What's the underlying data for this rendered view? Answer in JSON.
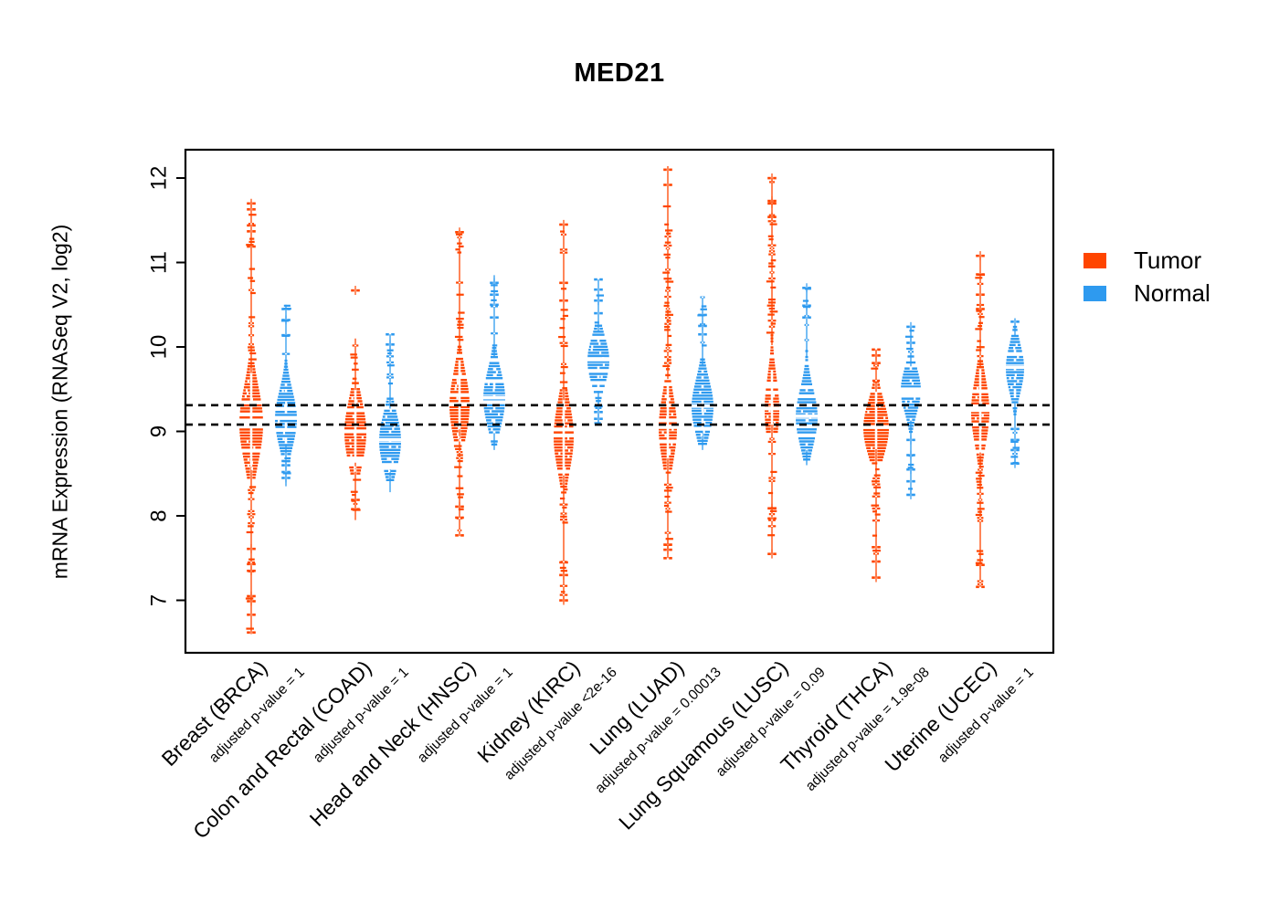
{
  "title": "MED21",
  "y_axis_label": "mRNA Expression (RNASeq V2, log2)",
  "chart_data": {
    "type": "violin",
    "marker_style": "horizontal-dash-strip",
    "title": "MED21",
    "ylabel": "mRNA Expression (RNASeq V2, log2)",
    "y_ticks": [
      7,
      8,
      9,
      10,
      11,
      12
    ],
    "ylim": [
      6.4,
      12.33
    ],
    "grid": false,
    "legend_position": "right",
    "reference_lines": [
      9.31,
      9.08
    ],
    "reference_line_style": "dashed",
    "series": [
      {
        "name": "Tumor",
        "color": "#FF4500"
      },
      {
        "name": "Normal",
        "color": "#2E9AEF"
      }
    ],
    "groups": [
      {
        "label": "Breast (BRCA)",
        "pvalue_label": "adjusted p-value = 1",
        "tumor": {
          "median": 9.1,
          "q1": 8.82,
          "q3": 9.42,
          "bulk": [
            8.45,
            9.82
          ],
          "stem": [
            6.6,
            11.72
          ],
          "w": 13,
          "outliers_high": [
            11.19,
            11.37,
            11.44,
            11.63,
            11.7
          ],
          "outliers_low": [
            7.61,
            7.43,
            7.35,
            7.05,
            6.99,
            6.83,
            6.62
          ],
          "clusters": [
            {
              "lo": 9.85,
              "hi": 11.0,
              "p": 0.5
            },
            {
              "lo": 7.8,
              "hi": 8.45,
              "p": 0.5
            }
          ]
        },
        "normal": {
          "median": 9.16,
          "q1": 8.95,
          "q3": 9.4,
          "bulk": [
            8.72,
            9.85
          ],
          "stem": [
            8.35,
            10.5
          ],
          "w": 12,
          "outliers_high": [
            10.14,
            10.32,
            10.45
          ],
          "outliers_low": [
            8.45,
            8.52,
            8.6,
            8.65
          ],
          "clusters": [
            {
              "lo": 9.85,
              "hi": 10.1,
              "p": 0.4
            }
          ]
        }
      },
      {
        "label": "Colon and Rectal (COAD)",
        "pvalue_label": "adjusted p-value = 1",
        "tumor": {
          "median": 9.0,
          "q1": 8.74,
          "q3": 9.26,
          "bulk": [
            8.5,
            9.62
          ],
          "stem": [
            7.95,
            10.1
          ],
          "w": 12,
          "outliers_high": [
            10.67
          ],
          "outliers_low": [
            8.08,
            8.19
          ],
          "clusters": [
            {
              "lo": 9.62,
              "hi": 9.95,
              "p": 0.45
            },
            {
              "lo": 8.1,
              "hi": 8.5,
              "p": 0.45
            }
          ]
        },
        "normal": {
          "median": 8.9,
          "q1": 8.68,
          "q3": 9.12,
          "bulk": [
            8.42,
            9.4
          ],
          "stem": [
            8.28,
            10.15
          ],
          "w": 12,
          "outliers_high": [
            10.03,
            10.15
          ],
          "outliers_low": [],
          "clusters": [
            {
              "lo": 9.4,
              "hi": 9.95,
              "p": 0.4
            }
          ]
        }
      },
      {
        "label": "Head and Neck (HNSC)",
        "pvalue_label": "adjusted p-value = 1",
        "tumor": {
          "median": 9.32,
          "q1": 9.06,
          "q3": 9.58,
          "bulk": [
            8.9,
            10.05
          ],
          "stem": [
            7.76,
            11.38
          ],
          "w": 11,
          "outliers_high": [
            11.36
          ],
          "outliers_low": [
            8.11,
            7.98,
            7.77
          ],
          "clusters": [
            {
              "lo": 10.05,
              "hi": 10.95,
              "p": 0.5
            },
            {
              "lo": 8.3,
              "hi": 8.9,
              "p": 0.5
            }
          ]
        },
        "normal": {
          "median": 9.4,
          "q1": 9.18,
          "q3": 9.63,
          "bulk": [
            8.85,
            10.0
          ],
          "stem": [
            8.78,
            10.85
          ],
          "w": 12,
          "outliers_high": [
            10.35,
            10.5,
            10.62,
            10.76
          ],
          "outliers_low": [],
          "clusters": [
            {
              "lo": 10.0,
              "hi": 10.3,
              "p": 0.35
            }
          ]
        }
      },
      {
        "label": "Kidney (KIRC)",
        "pvalue_label": "adjusted p-value <2e-16",
        "tumor": {
          "median": 8.95,
          "q1": 8.68,
          "q3": 9.22,
          "bulk": [
            8.35,
            9.5
          ],
          "stem": [
            6.98,
            11.45
          ],
          "w": 11,
          "outliers_high": [
            10.55,
            10.76,
            11.45
          ],
          "outliers_low": [
            7.45,
            7.3,
            7.0
          ],
          "clusters": [
            {
              "lo": 9.5,
              "hi": 10.5,
              "p": 0.5
            },
            {
              "lo": 7.85,
              "hi": 8.35,
              "p": 0.65
            }
          ]
        },
        "normal": {
          "median": 9.85,
          "q1": 9.64,
          "q3": 10.02,
          "bulk": [
            9.35,
            10.3
          ],
          "stem": [
            9.1,
            10.8
          ],
          "w": 12,
          "outliers_high": [
            10.4,
            10.55,
            10.68,
            10.8
          ],
          "outliers_low": [
            9.15,
            9.23,
            9.3
          ],
          "clusters": []
        }
      },
      {
        "label": "Lung (LUAD)",
        "pvalue_label": "adjusted p-value = 0.00013",
        "tumor": {
          "median": 9.05,
          "q1": 8.8,
          "q3": 9.33,
          "bulk": [
            8.55,
            9.75
          ],
          "stem": [
            7.5,
            12.14
          ],
          "w": 10,
          "outliers_high": [
            11.92,
            12.1
          ],
          "outliers_low": [
            7.5,
            7.6,
            7.66
          ],
          "clusters": [
            {
              "lo": 9.75,
              "hi": 11.4,
              "p": 0.55
            },
            {
              "lo": 7.85,
              "hi": 8.5,
              "p": 0.6
            }
          ]
        },
        "normal": {
          "median": 9.3,
          "q1": 9.08,
          "q3": 9.52,
          "bulk": [
            8.85,
            9.9
          ],
          "stem": [
            8.78,
            10.6
          ],
          "w": 12,
          "outliers_high": [
            10.15,
            10.25,
            10.38
          ],
          "outliers_low": [],
          "clusters": [
            {
              "lo": 9.9,
              "hi": 10.1,
              "p": 0.35
            }
          ]
        }
      },
      {
        "label": "Lung Squamous (LUSC)",
        "pvalue_label": "adjusted p-value = 0.09",
        "tumor": {
          "median": 9.27,
          "q1": 9.02,
          "q3": 9.56,
          "bulk": [
            8.95,
            10.15
          ],
          "stem": [
            7.55,
            12.0
          ],
          "w": 8,
          "outliers_high": [
            11.54,
            11.7,
            11.73,
            12.0
          ],
          "outliers_low": [
            7.55,
            7.97,
            8.09
          ],
          "clusters": [
            {
              "lo": 10.15,
              "hi": 11.35,
              "p": 0.5
            },
            {
              "lo": 8.3,
              "hi": 8.95,
              "p": 0.55
            }
          ]
        },
        "normal": {
          "median": 9.18,
          "q1": 8.97,
          "q3": 9.42,
          "bulk": [
            8.65,
            10.0
          ],
          "stem": [
            8.6,
            10.7
          ],
          "w": 12,
          "outliers_high": [
            10.35,
            10.49,
            10.7
          ],
          "outliers_low": [],
          "clusters": [
            {
              "lo": 10.0,
              "hi": 10.3,
              "p": 0.3
            }
          ]
        }
      },
      {
        "label": "Thyroid (THCA)",
        "pvalue_label": "adjusted p-value = 1.9e-08",
        "tumor": {
          "median": 9.05,
          "q1": 8.83,
          "q3": 9.27,
          "bulk": [
            8.66,
            9.6
          ],
          "stem": [
            7.27,
            9.97
          ],
          "w": 14,
          "outliers_high": [
            9.81,
            9.9,
            9.97
          ],
          "outliers_low": [
            7.63,
            7.46,
            7.27
          ],
          "clusters": [
            {
              "lo": 9.6,
              "hi": 9.8,
              "p": 0.4
            },
            {
              "lo": 7.95,
              "hi": 8.45,
              "p": 0.6
            }
          ]
        },
        "normal": {
          "median": 9.5,
          "q1": 9.31,
          "q3": 9.67,
          "bulk": [
            9.0,
            9.9
          ],
          "stem": [
            8.25,
            10.24
          ],
          "w": 11,
          "outliers_high": [
            10.05,
            10.24
          ],
          "outliers_low": [
            8.25,
            8.41,
            8.55,
            8.72,
            8.9
          ],
          "clusters": []
        }
      },
      {
        "label": "Uterine (UCEC)",
        "pvalue_label": "adjusted p-value = 1",
        "tumor": {
          "median": 9.25,
          "q1": 8.98,
          "q3": 9.5,
          "bulk": [
            8.62,
            9.88
          ],
          "stem": [
            7.16,
            11.08
          ],
          "w": 10,
          "outliers_high": [
            10.45,
            10.62,
            10.86,
            11.08
          ],
          "outliers_low": [
            7.16,
            7.42
          ],
          "clusters": [
            {
              "lo": 9.88,
              "hi": 10.45,
              "p": 0.5
            },
            {
              "lo": 7.84,
              "hi": 8.62,
              "p": 0.7
            }
          ]
        },
        "normal": {
          "median": 9.76,
          "q1": 9.56,
          "q3": 9.94,
          "bulk": [
            9.2,
            10.25
          ],
          "stem": [
            8.6,
            10.34
          ],
          "w": 10,
          "outliers_high": [
            10.3
          ],
          "outliers_low": [
            8.62,
            8.78,
            8.9,
            9.03
          ],
          "clusters": []
        }
      }
    ]
  }
}
